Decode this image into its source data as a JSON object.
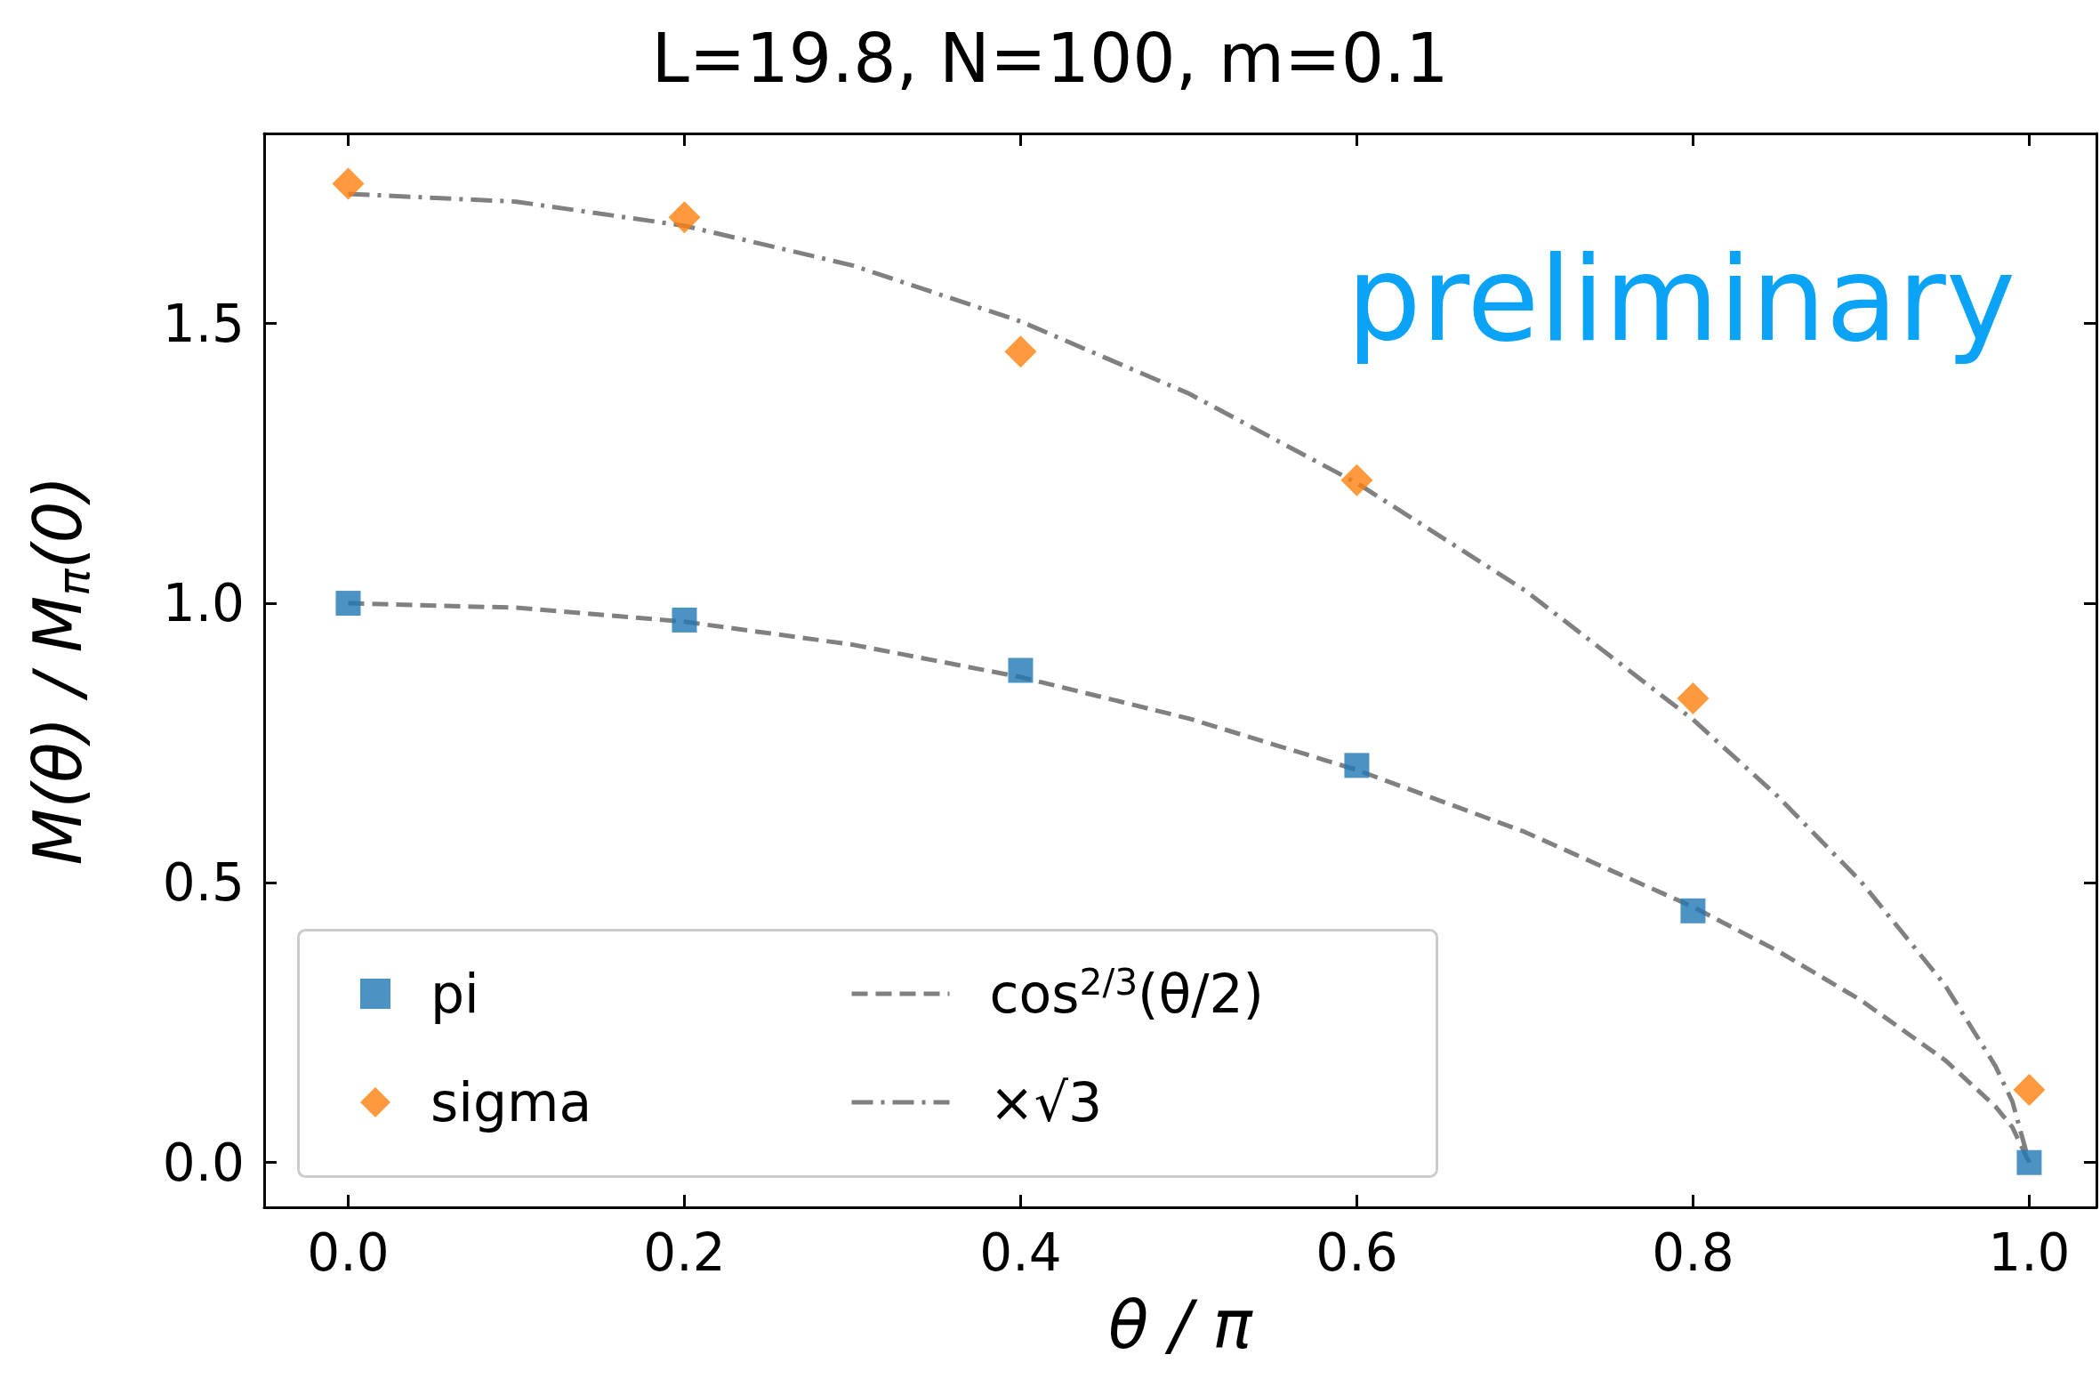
{
  "chart_data": {
    "type": "scatter",
    "title": "L=19.8, N=100, m=0.1",
    "xlabel": "θ / π",
    "ylabel": "M(θ) / M$_{π}$(0)",
    "x": [
      0,
      0.2,
      0.4,
      0.6,
      0.8,
      1.0
    ],
    "series": [
      {
        "name": "pi",
        "marker": "square",
        "color": "#1f77b4",
        "values": [
          1.0,
          0.97,
          0.88,
          0.71,
          0.45,
          0.0
        ]
      },
      {
        "name": "sigma",
        "marker": "diamond",
        "color": "#ff7f0e",
        "values": [
          1.75,
          1.69,
          1.45,
          1.22,
          0.83,
          0.13
        ]
      },
      {
        "name": "cos$^{2/3}$(θ/2)",
        "type": "line",
        "marker": "none",
        "line_style": "dashed",
        "color": "#808080",
        "x": [
          0,
          0.1,
          0.2,
          0.3,
          0.4,
          0.5,
          0.6,
          0.7,
          0.8,
          0.85,
          0.9,
          0.95,
          0.98,
          0.99,
          1.0
        ],
        "values": [
          1.0,
          0.992,
          0.967,
          0.926,
          0.868,
          0.794,
          0.702,
          0.591,
          0.457,
          0.379,
          0.29,
          0.183,
          0.1,
          0.063,
          0.0
        ]
      },
      {
        "name": "×√3",
        "type": "line",
        "marker": "none",
        "line_style": "dashdot",
        "color": "#808080",
        "x": [
          0,
          0.1,
          0.2,
          0.3,
          0.4,
          0.5,
          0.6,
          0.7,
          0.8,
          0.85,
          0.9,
          0.95,
          0.98,
          0.99,
          1.0
        ],
        "values": [
          1.732,
          1.718,
          1.675,
          1.604,
          1.504,
          1.375,
          1.215,
          1.023,
          0.792,
          0.656,
          0.502,
          0.317,
          0.172,
          0.109,
          0.0
        ]
      }
    ],
    "xlim": [
      -0.05,
      1.04
    ],
    "xticks": [
      {
        "value": 0,
        "label": "0.0"
      },
      {
        "value": 0.2,
        "label": "0.2"
      },
      {
        "value": 0.4,
        "label": "0.4"
      },
      {
        "value": 0.6,
        "label": "0.6"
      },
      {
        "value": 0.8,
        "label": "0.8"
      },
      {
        "value": 1.0,
        "label": "1.0"
      }
    ],
    "ylim": [
      -0.08,
      1.84
    ],
    "yticks": [
      {
        "value": 0,
        "label": "0.0"
      },
      0.5,
      {
        "value": 1,
        "label": "1.0"
      },
      1.5
    ],
    "annotations": [
      "preliminary"
    ],
    "grid": false,
    "legend": "bottom left"
  }
}
